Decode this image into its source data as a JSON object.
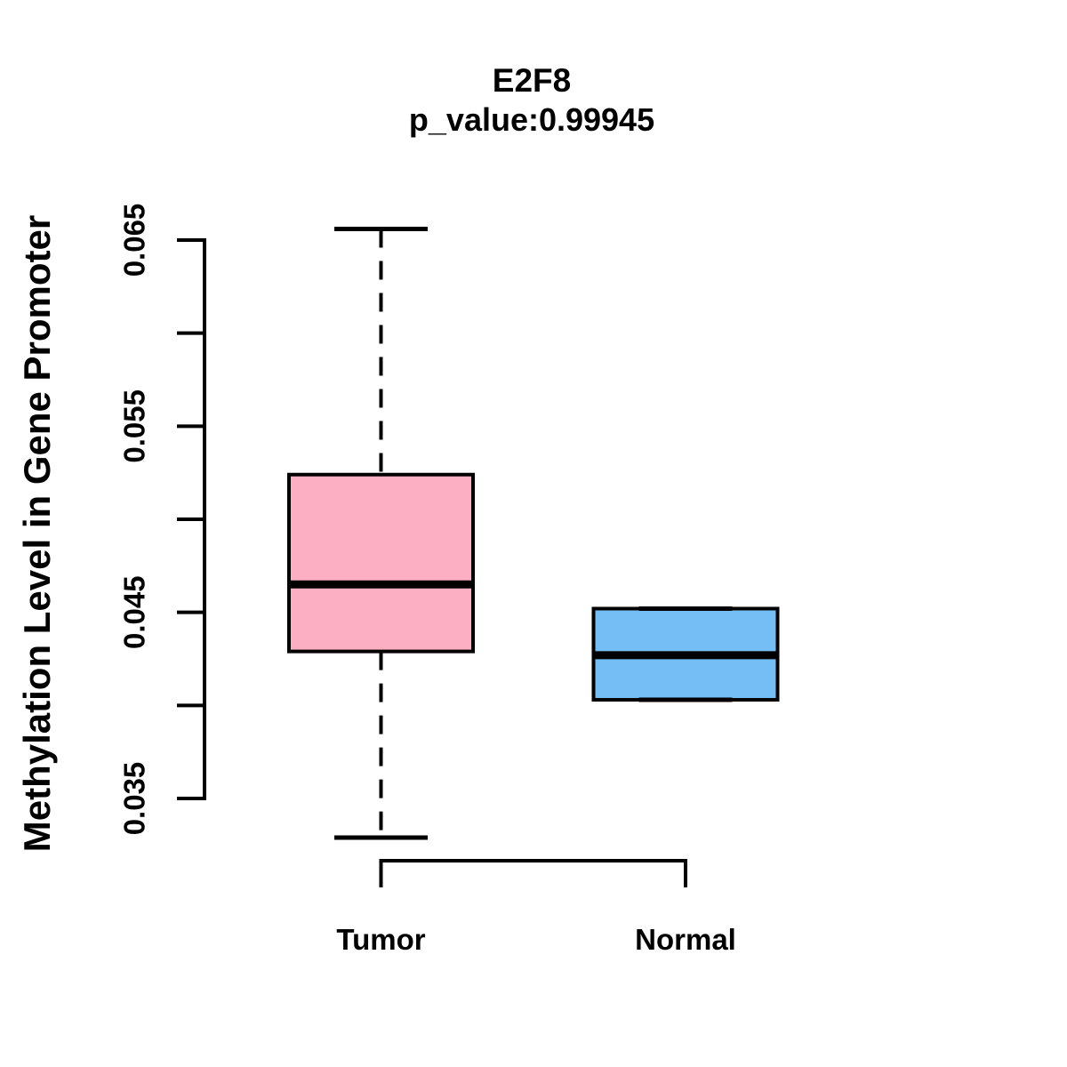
{
  "chart_data": {
    "type": "boxplot",
    "title": "E2F8",
    "subtitle": "p_value:0.99945",
    "ylabel": "Methylation Level in Gene Promoter",
    "legend": null,
    "grid": false,
    "y_axis": {
      "range": [
        0.035,
        0.065
      ],
      "tick_step": 0.005,
      "tick_values": [
        0.035,
        0.04,
        0.045,
        0.05,
        0.055,
        0.06,
        0.065
      ],
      "labeled_ticks": [
        {
          "value": 0.035,
          "label": "0.035"
        },
        {
          "value": 0.045,
          "label": "0.045"
        },
        {
          "value": 0.055,
          "label": "0.055"
        },
        {
          "value": 0.065,
          "label": "0.065"
        }
      ]
    },
    "groups": [
      {
        "label": "Tumor",
        "fill_color": "#FCAEC2",
        "stats": {
          "whisker_low": 0.0329,
          "q1": 0.0429,
          "median": 0.0465,
          "q3": 0.0524,
          "whisker_high": 0.0656
        }
      },
      {
        "label": "Normal",
        "fill_color": "#74BEF5",
        "stats": {
          "whisker_low": 0.0403,
          "q1": 0.0403,
          "median": 0.0427,
          "q3": 0.0452,
          "whisker_high": 0.0452
        }
      }
    ],
    "style": {
      "line_color": "#000000",
      "background": "#FFFFFF"
    }
  }
}
